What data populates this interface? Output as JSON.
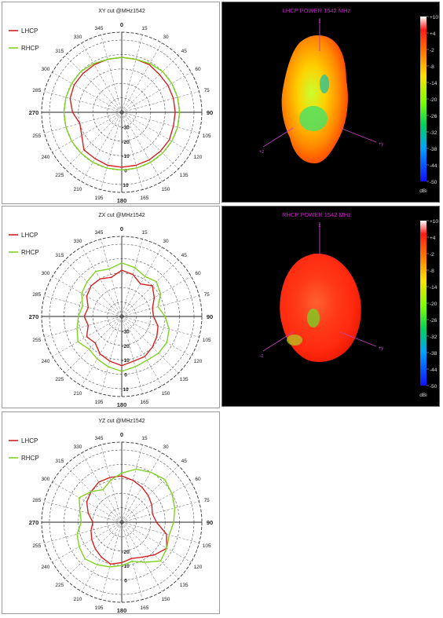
{
  "legend_colors": {
    "LHCP": "#d42020",
    "RHCP": "#7ed321"
  },
  "chart_data": [
    {
      "type": "polar",
      "title": "XY cut @MHz1542",
      "legend": [
        "LHCP",
        "RHCP"
      ],
      "angle_labels": [
        "0",
        "15",
        "30",
        "45",
        "60",
        "75",
        "90",
        "105",
        "120",
        "135",
        "150",
        "165",
        "180",
        "195",
        "210",
        "225",
        "240",
        "255",
        "270",
        "285",
        "300",
        "315",
        "330",
        "345"
      ],
      "radial_labels": [
        "-30",
        "-20",
        "-10",
        "0",
        "10"
      ],
      "rlim": [
        -40,
        10
      ],
      "angles": [
        0,
        15,
        30,
        45,
        60,
        75,
        90,
        105,
        120,
        135,
        150,
        165,
        180,
        195,
        210,
        225,
        240,
        255,
        270,
        285,
        300,
        315,
        330,
        345
      ],
      "series": [
        {
          "name": "LHCP",
          "color": "#d42020",
          "values": [
            -2,
            -2,
            -2,
            -3,
            -3,
            -3,
            -3,
            -3,
            -2,
            -2,
            -2,
            -2,
            -2,
            -2,
            -3,
            -3,
            -8,
            -10,
            -6,
            -3,
            -2,
            -2,
            -2,
            -2
          ]
        },
        {
          "name": "RHCP",
          "color": "#7ed321",
          "values": [
            -2,
            -2,
            -1,
            0,
            0,
            0,
            0,
            0,
            0,
            0,
            0,
            0,
            0,
            0,
            0,
            0,
            0,
            0,
            0,
            0,
            0,
            0,
            -1,
            -2
          ]
        }
      ]
    },
    {
      "type": "polar",
      "title": "ZX cut @MHz1542",
      "legend": [
        "LHCP",
        "RHCP"
      ],
      "angle_labels": [
        "0",
        "15",
        "30",
        "45",
        "60",
        "75",
        "90",
        "105",
        "120",
        "135",
        "150",
        "165",
        "180",
        "195",
        "210",
        "225",
        "240",
        "255",
        "270",
        "285",
        "300",
        "315",
        "330",
        "345"
      ],
      "radial_labels": [
        "-30",
        "-20",
        "-10",
        "0",
        "10"
      ],
      "rlim": [
        -40,
        10
      ],
      "angles": [
        0,
        15,
        30,
        45,
        60,
        75,
        90,
        105,
        120,
        135,
        150,
        165,
        180,
        195,
        210,
        225,
        240,
        255,
        270,
        285,
        300,
        315,
        330,
        345
      ],
      "series": [
        {
          "name": "LHCP",
          "color": "#d42020",
          "values": [
            -8,
            -10,
            -14,
            -10,
            -14,
            -18,
            -18,
            -14,
            -12,
            -10,
            -8,
            -8,
            -6,
            -8,
            -10,
            -14,
            -12,
            -16,
            -14,
            -16,
            -12,
            -10,
            -10,
            -12
          ]
        },
        {
          "name": "RHCP",
          "color": "#7ed321",
          "values": [
            -3,
            -5,
            -8,
            -6,
            -9,
            -14,
            -10,
            -6,
            -4,
            -4,
            -5,
            -4,
            -2,
            -4,
            -6,
            -8,
            -5,
            -8,
            -10,
            -12,
            -8,
            -6,
            -4,
            -6
          ]
        }
      ]
    },
    {
      "type": "polar",
      "title": "YZ cut @MHz1542",
      "legend": [
        "LHCP",
        "RHCP"
      ],
      "angle_labels": [
        "0",
        "15",
        "30",
        "45",
        "60",
        "75",
        "90",
        "105",
        "120",
        "135",
        "150",
        "165",
        "180",
        "195",
        "210",
        "225",
        "240",
        "255",
        "270",
        "285",
        "300",
        "315",
        "330",
        "345"
      ],
      "radial_labels": [
        "-20",
        "-10",
        "0"
      ],
      "rlim": [
        -40,
        10
      ],
      "angles": [
        0,
        15,
        30,
        45,
        60,
        75,
        90,
        105,
        120,
        135,
        150,
        165,
        180,
        195,
        210,
        225,
        240,
        255,
        270,
        285,
        300,
        315,
        330,
        345
      ],
      "series": [
        {
          "name": "LHCP",
          "color": "#d42020",
          "values": [
            -8,
            -10,
            -12,
            -14,
            -16,
            -18,
            -16,
            -8,
            -4,
            -8,
            -12,
            -14,
            -12,
            -10,
            -12,
            -14,
            -16,
            -18,
            -20,
            -16,
            -12,
            -10,
            -8,
            -8
          ]
        },
        {
          "name": "RHCP",
          "color": "#7ed321",
          "values": [
            -6,
            -2,
            0,
            2,
            0,
            -2,
            -4,
            -6,
            -4,
            -2,
            -8,
            -12,
            -10,
            -8,
            -6,
            -4,
            -6,
            -8,
            -12,
            -10,
            -6,
            -10,
            -14,
            -10
          ]
        }
      ]
    }
  ],
  "patterns": [
    {
      "title": "LHCP POWER 1542 MHz",
      "scale_ticks": [
        "+10",
        "+4",
        "-2",
        "-8",
        "-14",
        "-20",
        "-26",
        "-32",
        "-38",
        "-44",
        "-50"
      ],
      "unit": "dBi",
      "axis_labels": {
        "z": "z",
        "x": "+z",
        "y": "+y"
      }
    },
    {
      "title": "RHCP POWER 1542 MHz",
      "scale_ticks": [
        "+10",
        "+4",
        "-2",
        "-8",
        "-14",
        "-20",
        "-26",
        "-32",
        "-38",
        "-44",
        "-50"
      ],
      "unit": "dBi",
      "axis_labels": {
        "z": "z",
        "x": "-z",
        "y": "+y"
      }
    }
  ]
}
